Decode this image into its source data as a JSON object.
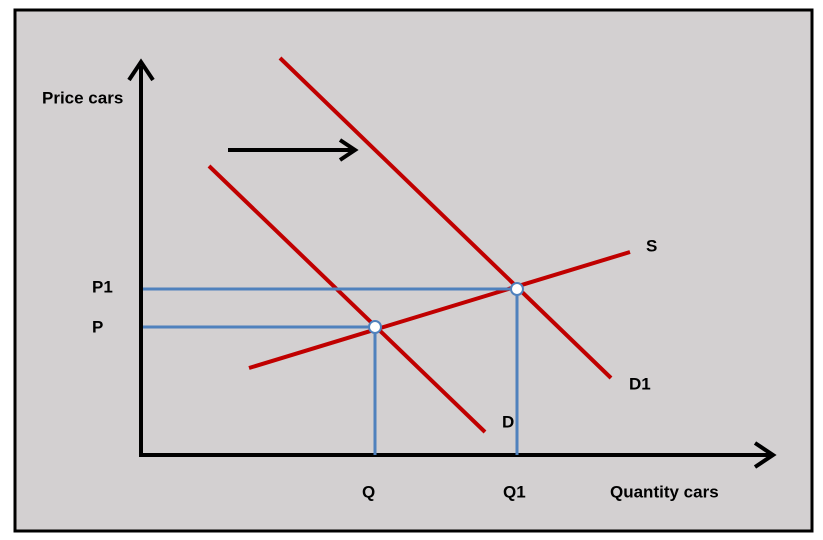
{
  "axes": {
    "y_label": "Price cars",
    "x_label": "Quantity cars"
  },
  "price_labels": [
    "P1",
    "P"
  ],
  "quantity_labels": [
    "Q",
    "Q1"
  ],
  "curve_labels": {
    "supply": "S",
    "demand_new": "D1",
    "demand": "D"
  }
}
